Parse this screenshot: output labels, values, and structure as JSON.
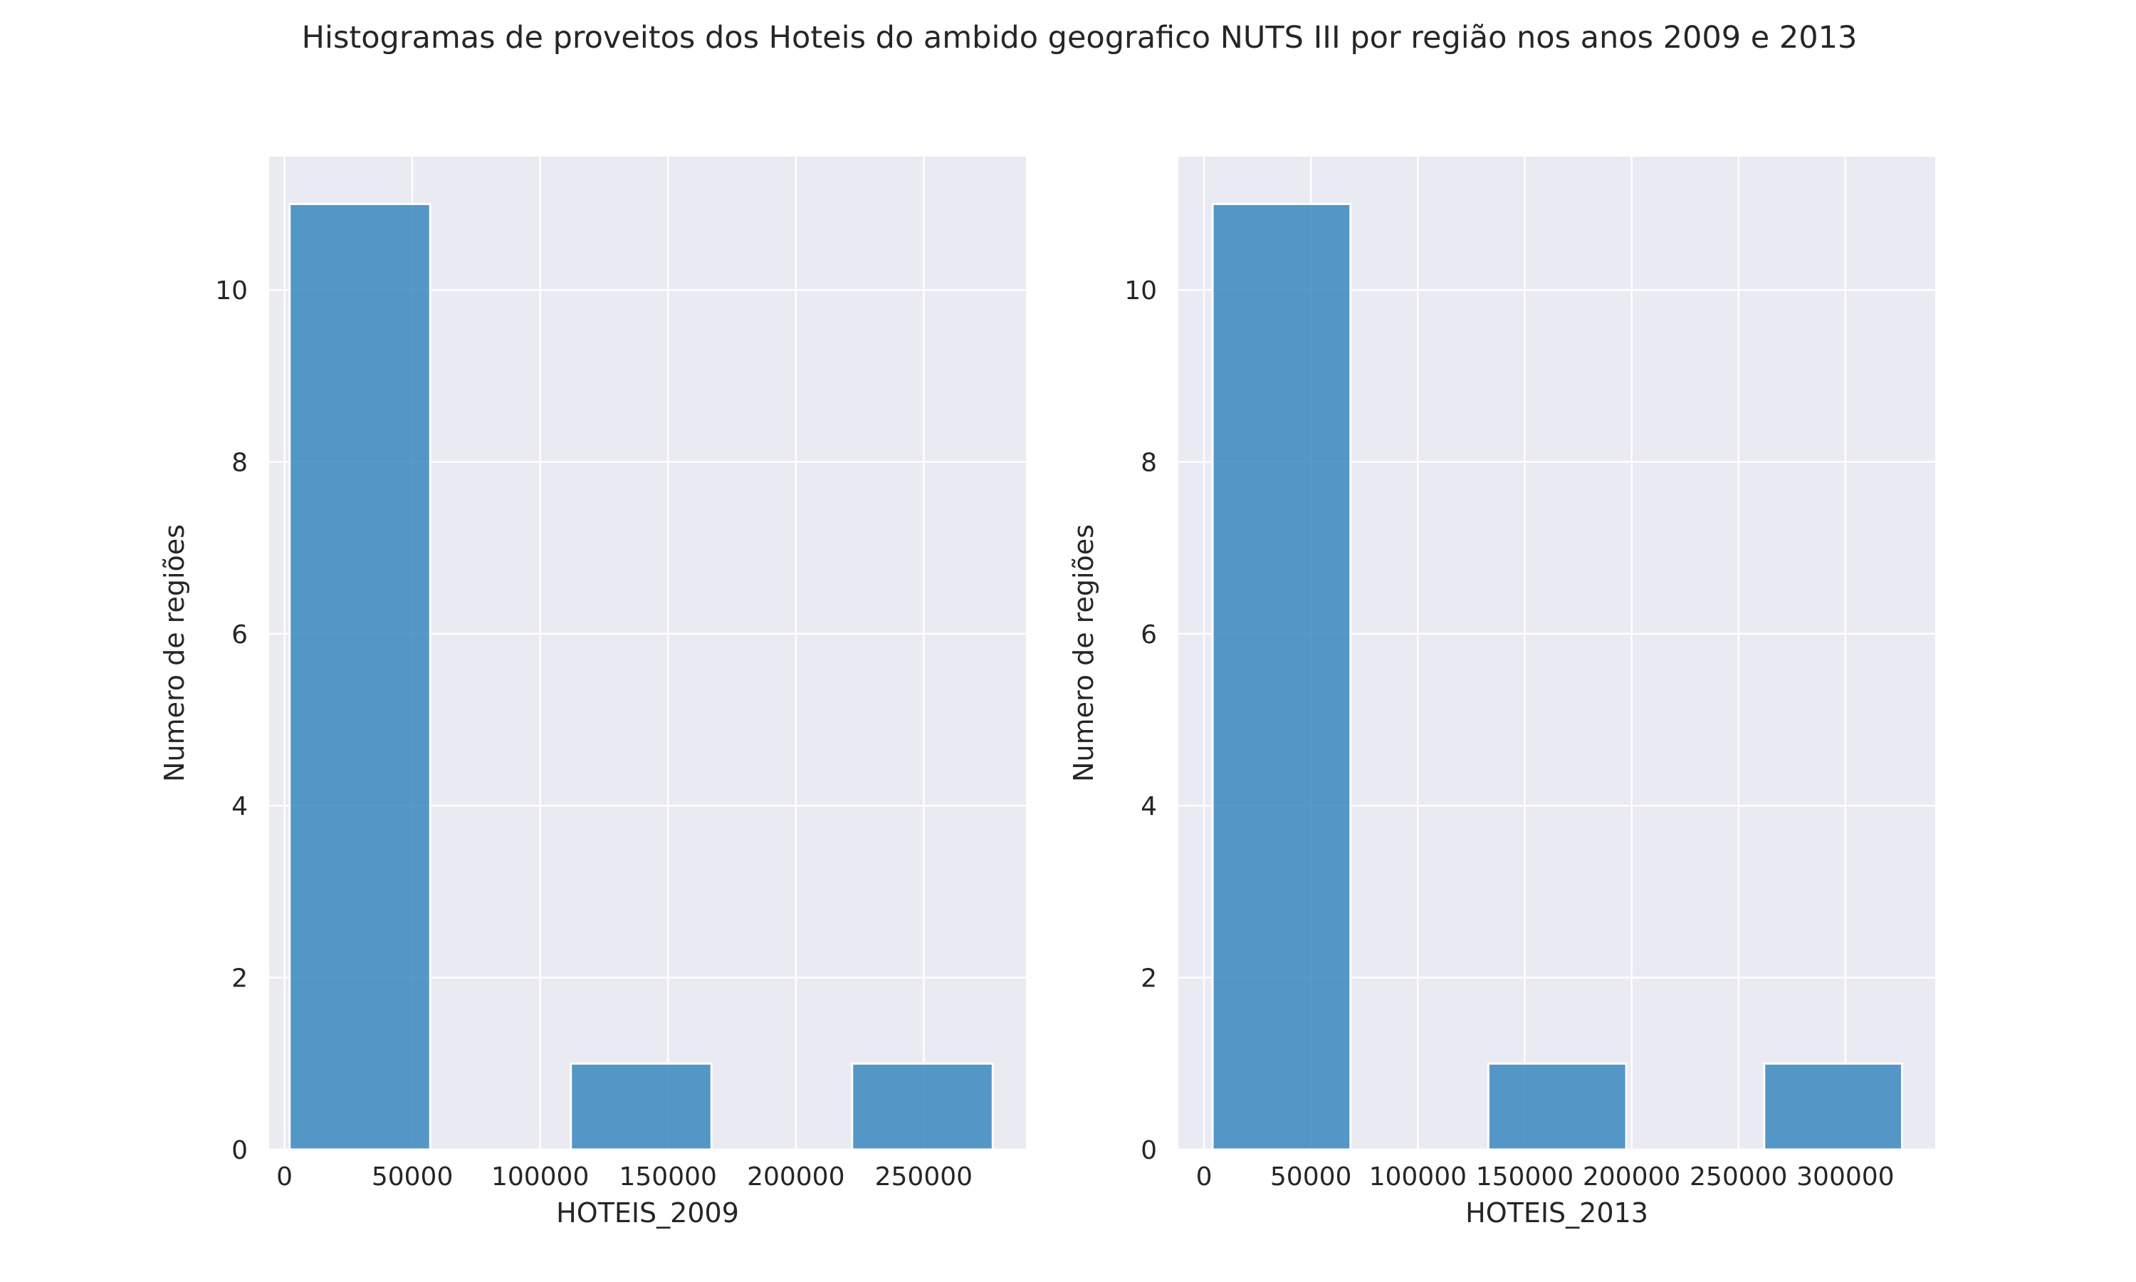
{
  "figure": {
    "title": "Histogramas de proveitos dos Hoteis do ambido geografico NUTS III por região nos anos 2009 e 2013"
  },
  "chart_data": [
    {
      "type": "bar",
      "subtype": "histogram",
      "title": "",
      "xlabel": "HOTEIS_2009",
      "ylabel": "Numero de regiões",
      "bar_color": "#3a87be",
      "grid": true,
      "xlim": [
        -6000,
        290000
      ],
      "ylim": [
        0,
        11.55
      ],
      "xticks": [
        0,
        50000,
        100000,
        150000,
        200000,
        250000
      ],
      "xtick_labels": [
        "0",
        "50000",
        "100000",
        "150000",
        "200000",
        "250000"
      ],
      "yticks": [
        0,
        2,
        4,
        6,
        8,
        10
      ],
      "ytick_labels": [
        "0",
        "2",
        "4",
        "6",
        "8",
        "10"
      ],
      "bins": [
        {
          "start": 2000,
          "end": 57000,
          "count": 11
        },
        {
          "start": 57000,
          "end": 112000,
          "count": 0
        },
        {
          "start": 112000,
          "end": 167000,
          "count": 1
        },
        {
          "start": 167000,
          "end": 222000,
          "count": 0
        },
        {
          "start": 222000,
          "end": 277000,
          "count": 1
        }
      ]
    },
    {
      "type": "bar",
      "subtype": "histogram",
      "title": "",
      "xlabel": "HOTEIS_2013",
      "ylabel": "Numero de regiões",
      "bar_color": "#3a87be",
      "grid": true,
      "xlim": [
        -12000,
        342000
      ],
      "ylim": [
        0,
        11.55
      ],
      "xticks": [
        0,
        50000,
        100000,
        150000,
        200000,
        250000,
        300000
      ],
      "xtick_labels": [
        "0",
        "50000",
        "100000",
        "150000",
        "200000",
        "250000",
        "300000"
      ],
      "yticks": [
        0,
        2,
        4,
        6,
        8,
        10
      ],
      "ytick_labels": [
        "0",
        "2",
        "4",
        "6",
        "8",
        "10"
      ],
      "bins": [
        {
          "start": 4000,
          "end": 68500,
          "count": 11
        },
        {
          "start": 68500,
          "end": 133000,
          "count": 0
        },
        {
          "start": 133000,
          "end": 197500,
          "count": 1
        },
        {
          "start": 197500,
          "end": 262000,
          "count": 0
        },
        {
          "start": 262000,
          "end": 326500,
          "count": 1
        }
      ]
    }
  ]
}
